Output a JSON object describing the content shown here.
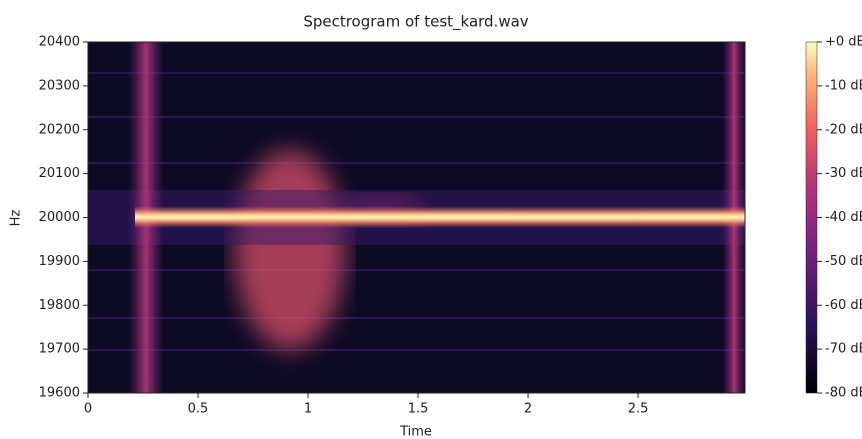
{
  "chart_data": {
    "type": "spectrogram",
    "title": "Spectrogram of test_kard.wav",
    "xlabel": "Time",
    "ylabel": "Hz",
    "xlim": [
      0,
      2.986
    ],
    "xticks": [
      0,
      0.5,
      1,
      1.5,
      2,
      2.5
    ],
    "ylim": [
      19600,
      20400
    ],
    "yticks": [
      19600,
      19700,
      19800,
      19900,
      20000,
      20100,
      20200,
      20300,
      20400
    ],
    "colorbar": {
      "lim": [
        -80,
        0
      ],
      "ticks": [
        {
          "value": 0,
          "label": "+0 dB"
        },
        {
          "value": -10,
          "label": "-10 dB"
        },
        {
          "value": -20,
          "label": "-20 dB"
        },
        {
          "value": -30,
          "label": "-30 dB"
        },
        {
          "value": -40,
          "label": "-40 dB"
        },
        {
          "value": -50,
          "label": "-50 dB"
        },
        {
          "value": -60,
          "label": "-60 dB"
        },
        {
          "value": -70,
          "label": "-70 dB"
        },
        {
          "value": -80,
          "label": "-80 dB"
        }
      ]
    }
  }
}
